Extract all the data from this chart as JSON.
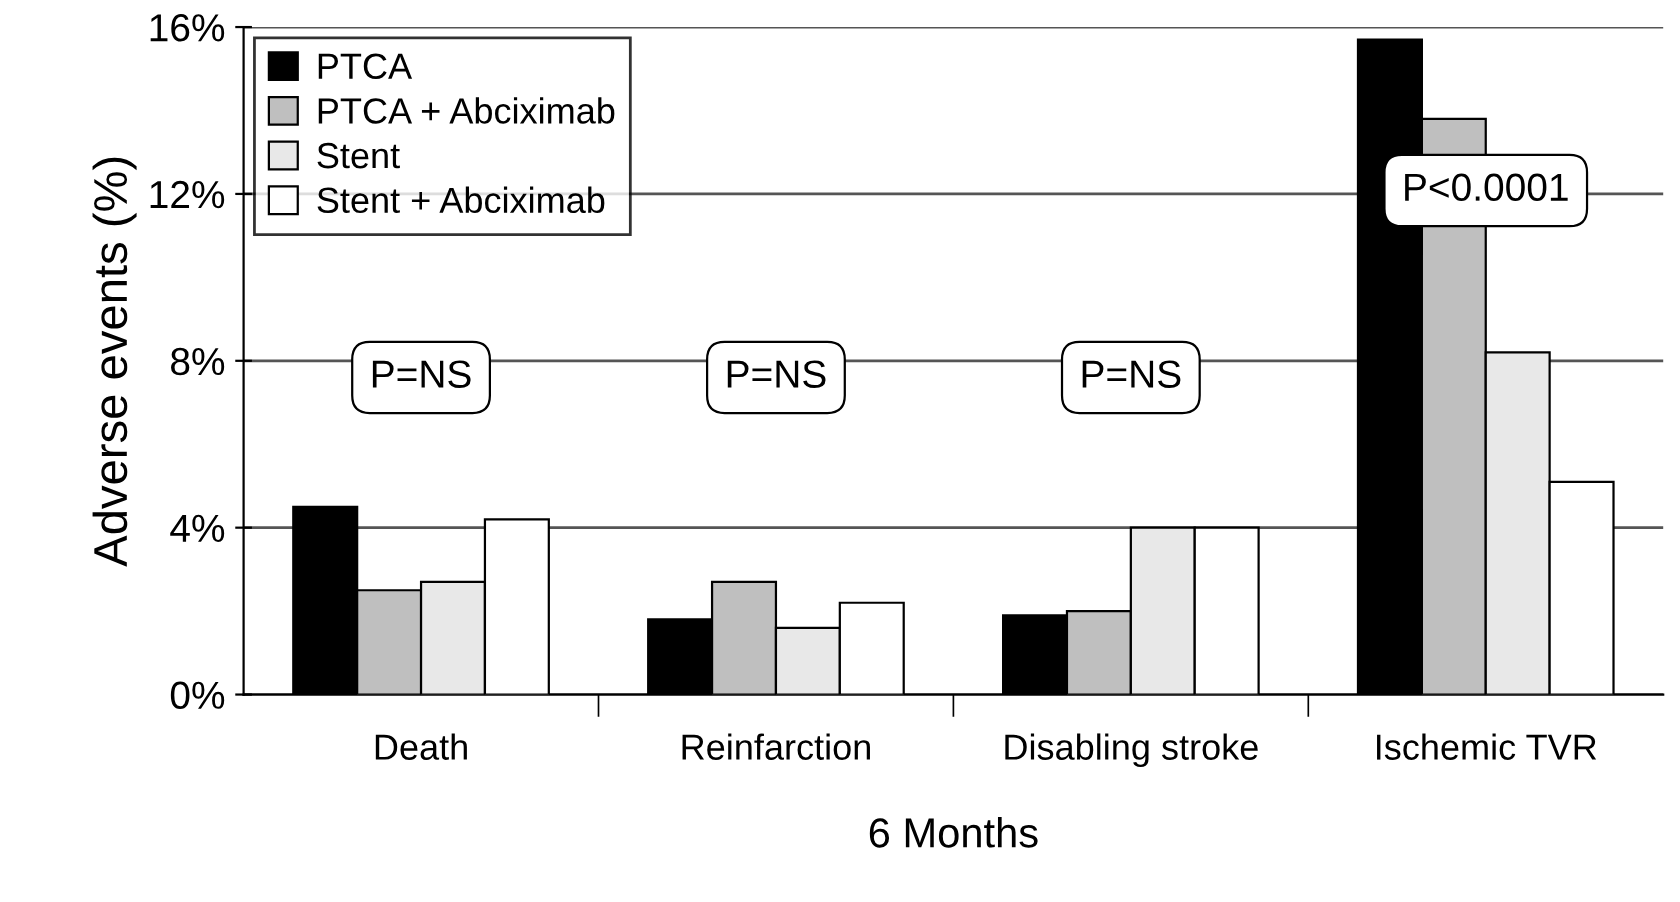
{
  "chart_data": {
    "type": "bar",
    "xlabel": "6 Months",
    "ylabel": "Adverse events (%)",
    "categories": [
      "Death",
      "Reinfarction",
      "Disabling stroke",
      "Ischemic TVR"
    ],
    "series": [
      {
        "name": "PTCA",
        "color": "#000000",
        "values": [
          4.5,
          1.8,
          1.9,
          15.7
        ]
      },
      {
        "name": "PTCA + Abciximab",
        "color": "#bfbfbf",
        "values": [
          2.5,
          2.7,
          2.0,
          13.8
        ]
      },
      {
        "name": "Stent",
        "color": "#e8e8e8",
        "values": [
          2.7,
          1.6,
          4.0,
          8.2
        ]
      },
      {
        "name": "Stent + Abciximab",
        "color": "#ffffff",
        "values": [
          4.2,
          2.2,
          4.0,
          5.1
        ]
      }
    ],
    "ylim": [
      0,
      16
    ],
    "yticks": [
      {
        "value": 0,
        "label": "0%"
      },
      {
        "value": 4,
        "label": "4%"
      },
      {
        "value": 8,
        "label": "8%"
      },
      {
        "value": 12,
        "label": "12%"
      },
      {
        "value": 16,
        "label": "16%"
      }
    ],
    "grid": "y",
    "legend": "top left",
    "annotations": [
      "P=NS",
      "P=NS",
      "P=NS",
      "P<0.0001"
    ]
  }
}
